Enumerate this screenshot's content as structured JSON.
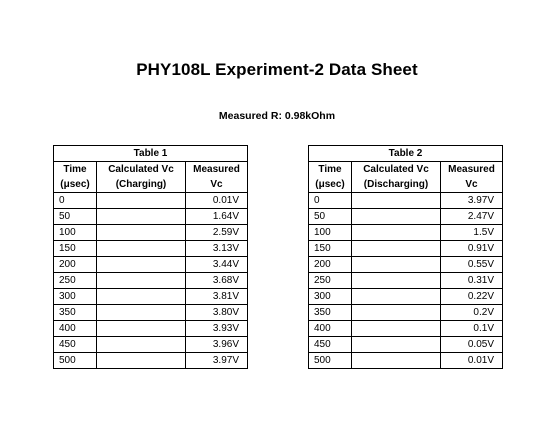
{
  "title": "PHY108L Experiment-2 Data Sheet",
  "measured_r": "Measured R: 0.98kOhm",
  "table1": {
    "caption": "Table 1",
    "col1_line1": "Time",
    "col1_line2": "(μsec)",
    "col2_line1": "Calculated Vc",
    "col2_line2": "(Charging)",
    "col3_line1": "Measured",
    "col3_line2": "Vc",
    "rows": [
      {
        "time": "0",
        "calc": "",
        "meas": "0.01V"
      },
      {
        "time": "50",
        "calc": "",
        "meas": "1.64V"
      },
      {
        "time": "100",
        "calc": "",
        "meas": "2.59V"
      },
      {
        "time": "150",
        "calc": "",
        "meas": "3.13V"
      },
      {
        "time": "200",
        "calc": "",
        "meas": "3.44V"
      },
      {
        "time": "250",
        "calc": "",
        "meas": "3.68V"
      },
      {
        "time": "300",
        "calc": "",
        "meas": "3.81V"
      },
      {
        "time": "350",
        "calc": "",
        "meas": "3.80V"
      },
      {
        "time": "400",
        "calc": "",
        "meas": "3.93V"
      },
      {
        "time": "450",
        "calc": "",
        "meas": "3.96V"
      },
      {
        "time": "500",
        "calc": "",
        "meas": "3.97V"
      }
    ]
  },
  "table2": {
    "caption": "Table 2",
    "col1_line1": "Time",
    "col1_line2": "(μsec)",
    "col2_line1": "Calculated Vc",
    "col2_line2": "(Discharging)",
    "col3_line1": "Measured",
    "col3_line2": "Vc",
    "rows": [
      {
        "time": "0",
        "calc": "",
        "meas": "3.97V"
      },
      {
        "time": "50",
        "calc": "",
        "meas": "2.47V"
      },
      {
        "time": "100",
        "calc": "",
        "meas": "1.5V"
      },
      {
        "time": "150",
        "calc": "",
        "meas": "0.91V"
      },
      {
        "time": "200",
        "calc": "",
        "meas": "0.55V"
      },
      {
        "time": "250",
        "calc": "",
        "meas": "0.31V"
      },
      {
        "time": "300",
        "calc": "",
        "meas": "0.22V"
      },
      {
        "time": "350",
        "calc": "",
        "meas": "0.2V"
      },
      {
        "time": "400",
        "calc": "",
        "meas": "0.1V"
      },
      {
        "time": "450",
        "calc": "",
        "meas": "0.05V"
      },
      {
        "time": "500",
        "calc": "",
        "meas": "0.01V"
      }
    ]
  }
}
